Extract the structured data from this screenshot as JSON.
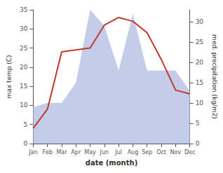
{
  "chart_data": {
    "type": "line",
    "xlabel": "date (month)",
    "ylabel": "max temp (C)",
    "y2label": "med. precipitation (kg/m2)",
    "categories": [
      "Jan",
      "Feb",
      "Mar",
      "Apr",
      "May",
      "Jun",
      "Jul",
      "Aug",
      "Sep",
      "Oct",
      "Nov",
      "Dec"
    ],
    "series": [
      {
        "type": "area",
        "axis": "y2",
        "color": "#b8c4e8",
        "values": [
          9,
          10,
          10,
          15,
          33,
          29,
          18,
          32,
          18,
          18,
          18,
          13
        ]
      },
      {
        "type": "line",
        "axis": "y",
        "color": "#c0392b",
        "values": [
          4,
          9,
          24,
          24.5,
          25,
          31,
          33,
          32,
          29,
          22,
          14,
          13
        ]
      }
    ],
    "ylim": [
      0,
      35
    ],
    "yticks": [
      0,
      5,
      10,
      15,
      20,
      25,
      30,
      35
    ],
    "y2lim": [
      0,
      33
    ],
    "y2ticks": [
      0,
      5,
      10,
      15,
      20,
      25,
      30
    ],
    "grid": false
  }
}
